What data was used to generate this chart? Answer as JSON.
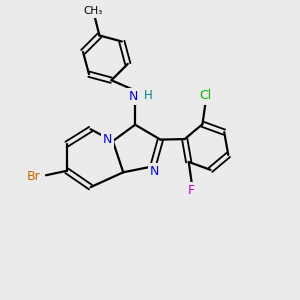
{
  "background_color": "#ebebeb",
  "bond_color": "#000000",
  "N_color": "#0000ff",
  "Br_color": "#cc6600",
  "Cl_color": "#00bb00",
  "F_color": "#cc00cc",
  "H_color": "#008888",
  "figsize": [
    3.0,
    3.0
  ],
  "dpi": 100,
  "xlim": [
    0,
    10
  ],
  "ylim": [
    0,
    10
  ]
}
